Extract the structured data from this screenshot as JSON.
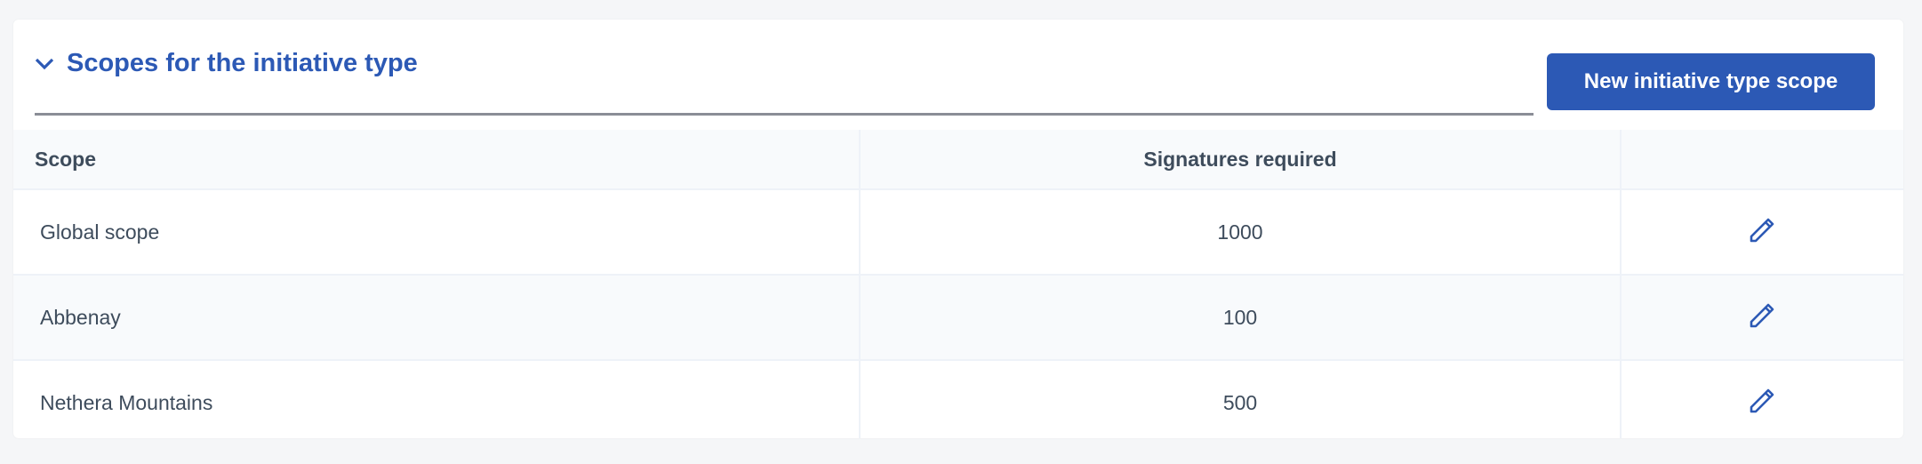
{
  "section": {
    "title": "Scopes for the initiative type",
    "new_button_label": "New initiative type scope"
  },
  "table": {
    "headers": [
      "Scope",
      "Signatures required",
      ""
    ],
    "rows": [
      {
        "scope": "Global scope",
        "signatures": "1000",
        "action_icon": "pencil-icon"
      },
      {
        "scope": "Abbenay",
        "signatures": "100",
        "action_icon": "pencil-icon"
      },
      {
        "scope": "Nethera Mountains",
        "signatures": "500",
        "action_icon": "pencil-icon"
      }
    ]
  },
  "colors": {
    "accent": "#2c59b5",
    "text": "#3e4c5c",
    "background": "#f5f6f8"
  }
}
